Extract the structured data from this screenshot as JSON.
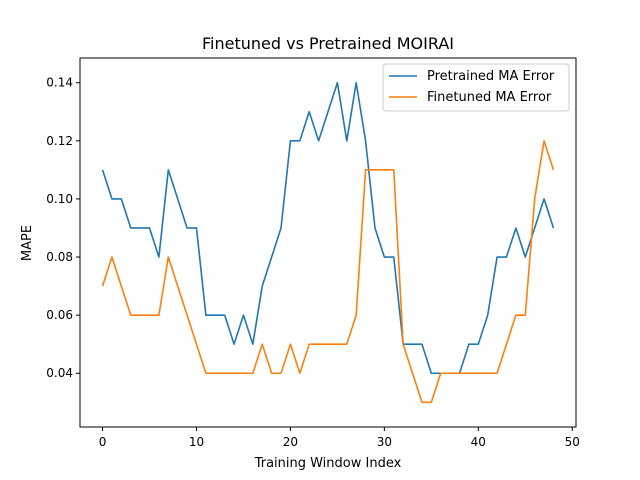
{
  "chart_data": {
    "type": "line",
    "title": "Finetuned vs Pretrained MOIRAI",
    "xlabel": "Training Window Index",
    "ylabel": "MAPE",
    "xlim": [
      -2.4,
      50.4
    ],
    "ylim": [
      0.0215,
      0.1485
    ],
    "xticks": [
      0,
      10,
      20,
      30,
      40,
      50
    ],
    "yticks": [
      0.04,
      0.06,
      0.08,
      0.1,
      0.12,
      0.14
    ],
    "xtick_labels": [
      "0",
      "10",
      "20",
      "30",
      "40",
      "50"
    ],
    "ytick_labels": [
      "0.04",
      "0.06",
      "0.08",
      "0.10",
      "0.12",
      "0.14"
    ],
    "grid": false,
    "legend_position": "top-right",
    "x": [
      0,
      1,
      2,
      3,
      4,
      5,
      6,
      7,
      8,
      9,
      10,
      11,
      12,
      13,
      14,
      15,
      16,
      17,
      18,
      19,
      20,
      21,
      22,
      23,
      24,
      25,
      26,
      27,
      28,
      29,
      30,
      31,
      32,
      33,
      34,
      35,
      36,
      37,
      38,
      39,
      40,
      41,
      42,
      43,
      44,
      45,
      46,
      47,
      48
    ],
    "series": [
      {
        "name": "Pretrained MA Error",
        "color": "#1f77b4",
        "values": [
          0.11,
          0.1,
          0.1,
          0.09,
          0.09,
          0.09,
          0.08,
          0.11,
          0.1,
          0.09,
          0.09,
          0.06,
          0.06,
          0.06,
          0.05,
          0.06,
          0.05,
          0.07,
          0.08,
          0.09,
          0.12,
          0.12,
          0.13,
          0.12,
          0.13,
          0.14,
          0.12,
          0.14,
          0.12,
          0.09,
          0.08,
          0.08,
          0.05,
          0.05,
          0.05,
          0.04,
          0.04,
          0.04,
          0.04,
          0.05,
          0.05,
          0.06,
          0.08,
          0.08,
          0.09,
          0.08,
          0.09,
          0.1,
          0.09
        ]
      },
      {
        "name": "Finetuned MA Error",
        "color": "#ff7f0e",
        "values": [
          0.07,
          0.08,
          0.07,
          0.06,
          0.06,
          0.06,
          0.06,
          0.08,
          0.07,
          0.06,
          0.05,
          0.04,
          0.04,
          0.04,
          0.04,
          0.04,
          0.04,
          0.05,
          0.04,
          0.04,
          0.05,
          0.04,
          0.05,
          0.05,
          0.05,
          0.05,
          0.05,
          0.06,
          0.11,
          0.11,
          0.11,
          0.11,
          0.05,
          0.04,
          0.03,
          0.03,
          0.04,
          0.04,
          0.04,
          0.04,
          0.04,
          0.04,
          0.04,
          0.05,
          0.06,
          0.06,
          0.1,
          0.12,
          0.11
        ]
      }
    ]
  }
}
